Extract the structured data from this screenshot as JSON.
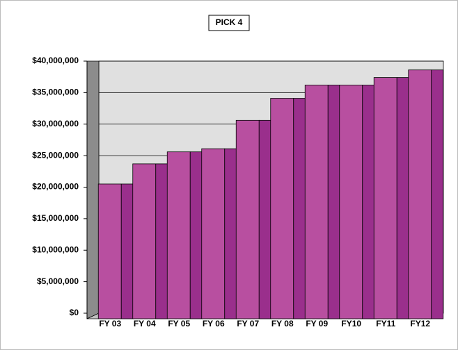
{
  "chart_data": {
    "type": "bar",
    "title": "PICK 4",
    "categories": [
      "FY 03",
      "FY 04",
      "FY 05",
      "FY 06",
      "FY 07",
      "FY 08",
      "FY 09",
      "FY10",
      "FY11",
      "FY12"
    ],
    "values": [
      20500000,
      23700000,
      25600000,
      26100000,
      30600000,
      34100000,
      36200000,
      36200000,
      37400000,
      38600000
    ],
    "color": "#b84fa0",
    "ylim": [
      0,
      40000000
    ],
    "yticks": [
      {
        "value": 0,
        "label": "$0"
      },
      {
        "value": 5000000,
        "label": "$5,000,000"
      },
      {
        "value": 10000000,
        "label": "$10,000,000"
      },
      {
        "value": 15000000,
        "label": "$15,000,000"
      },
      {
        "value": 20000000,
        "label": "$20,000,000"
      },
      {
        "value": 25000000,
        "label": "$25,000,000"
      },
      {
        "value": 30000000,
        "label": "$30,000,000"
      },
      {
        "value": 35000000,
        "label": "$35,000,000"
      },
      {
        "value": 40000000,
        "label": "$40,000,000"
      }
    ],
    "grid": true
  }
}
